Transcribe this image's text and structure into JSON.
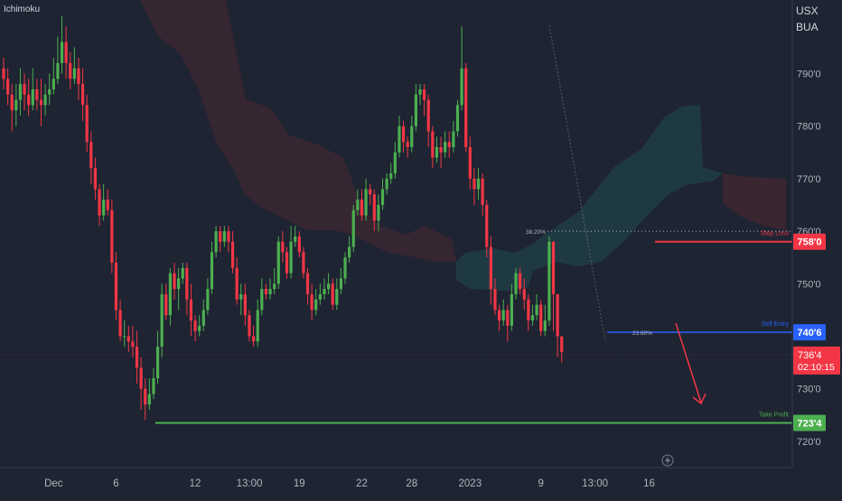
{
  "indicator_label": "Ichimoku",
  "currency": "USX",
  "unit": "BUA",
  "chart_data": {
    "type": "candlestick",
    "y_range": [
      715,
      804
    ],
    "y_ticks": [
      {
        "value": 790,
        "label": "790'0"
      },
      {
        "value": 780,
        "label": "780'0"
      },
      {
        "value": 770,
        "label": "770'0"
      },
      {
        "value": 760,
        "label": "760'0"
      },
      {
        "value": 750,
        "label": "750'0"
      },
      {
        "value": 730,
        "label": "730'0"
      },
      {
        "value": 720,
        "label": "720'0"
      }
    ],
    "x_ticks": [
      {
        "index": 12,
        "label": "Dec"
      },
      {
        "index": 27,
        "label": "6"
      },
      {
        "index": 46,
        "label": "12"
      },
      {
        "index": 59,
        "label": "13:00"
      },
      {
        "index": 71,
        "label": "19"
      },
      {
        "index": 86,
        "label": "22"
      },
      {
        "index": 98,
        "label": "28"
      },
      {
        "index": 112,
        "label": "2023"
      },
      {
        "index": 129,
        "label": "9"
      },
      {
        "index": 142,
        "label": "13:00"
      },
      {
        "index": 155,
        "label": "16"
      }
    ],
    "bar_count": 162,
    "last_price": {
      "value": 736.5,
      "label": "736'4",
      "countdown": "02:10:15"
    },
    "levels": [
      {
        "name": "Stop Loss",
        "value": 758,
        "label": "758'0",
        "color": "#f23645"
      },
      {
        "name": "Sell Entry",
        "value": 740.75,
        "label": "740'6",
        "color": "#2962ff"
      },
      {
        "name": "Take Profit",
        "value": 723.5,
        "label": "723'4",
        "color": "#4caf50"
      }
    ],
    "fib_levels": [
      {
        "label": "38.20%",
        "value": 760
      },
      {
        "label": "23.60%",
        "value": 740.75
      }
    ],
    "candles": [
      [
        791,
        789,
        793,
        787
      ],
      [
        789,
        786,
        791,
        784
      ],
      [
        786,
        783,
        788,
        779
      ],
      [
        783,
        785,
        788,
        780
      ],
      [
        785,
        788,
        791,
        782
      ],
      [
        788,
        786,
        790,
        783
      ],
      [
        786,
        784,
        789,
        782
      ],
      [
        784,
        787,
        791,
        783
      ],
      [
        787,
        785,
        789,
        783
      ],
      [
        785,
        784,
        789,
        780
      ],
      [
        784,
        786,
        788,
        782
      ],
      [
        786,
        787,
        790,
        784
      ],
      [
        787,
        789,
        793,
        786
      ],
      [
        789,
        792,
        797,
        788
      ],
      [
        792,
        796,
        801,
        790
      ],
      [
        796,
        792,
        799,
        789
      ],
      [
        792,
        789,
        794,
        787
      ],
      [
        789,
        791,
        795,
        788
      ],
      [
        791,
        788,
        793,
        785
      ],
      [
        788,
        784,
        791,
        781
      ],
      [
        784,
        777,
        786,
        775
      ],
      [
        777,
        772,
        779,
        769
      ],
      [
        772,
        768,
        774,
        766
      ],
      [
        768,
        763,
        769,
        761
      ],
      [
        763,
        766,
        769,
        762
      ],
      [
        766,
        764,
        768,
        763
      ],
      [
        764,
        754,
        766,
        752
      ],
      [
        754,
        745,
        756,
        743
      ],
      [
        745,
        740,
        747,
        739
      ],
      [
        740,
        740,
        743,
        738
      ],
      [
        740,
        739,
        742,
        737
      ],
      [
        739,
        738,
        742,
        736
      ],
      [
        738,
        734,
        741,
        731
      ],
      [
        734,
        730,
        736,
        726
      ],
      [
        730,
        727,
        732,
        724
      ],
      [
        727,
        729,
        732,
        726
      ],
      [
        729,
        732,
        734,
        728
      ],
      [
        732,
        738,
        741,
        731
      ],
      [
        738,
        748,
        750,
        736
      ],
      [
        748,
        744,
        750,
        743
      ],
      [
        744,
        752,
        753,
        742
      ],
      [
        752,
        749,
        754,
        747
      ],
      [
        749,
        751,
        753,
        745
      ],
      [
        751,
        753,
        754,
        750
      ],
      [
        753,
        747,
        754,
        744
      ],
      [
        747,
        743,
        750,
        740
      ],
      [
        743,
        741,
        744,
        739
      ],
      [
        741,
        742,
        744,
        740
      ],
      [
        742,
        745,
        747,
        741
      ],
      [
        745,
        749,
        751,
        744
      ],
      [
        749,
        756,
        758,
        748
      ],
      [
        756,
        760,
        761,
        755
      ],
      [
        760,
        758,
        761,
        756
      ],
      [
        758,
        760,
        761,
        757
      ],
      [
        760,
        758,
        761,
        756
      ],
      [
        758,
        753,
        760,
        752
      ],
      [
        753,
        747,
        755,
        746
      ],
      [
        747,
        748,
        750,
        744
      ],
      [
        748,
        744,
        750,
        742
      ],
      [
        744,
        740,
        745,
        739
      ],
      [
        740,
        739,
        742,
        738
      ],
      [
        739,
        745,
        747,
        738
      ],
      [
        745,
        749,
        751,
        744
      ],
      [
        749,
        748,
        750,
        747
      ],
      [
        748,
        749,
        751,
        747
      ],
      [
        749,
        750,
        753,
        748
      ],
      [
        750,
        758,
        759,
        749
      ],
      [
        758,
        756,
        760,
        754
      ],
      [
        756,
        752,
        757,
        751
      ],
      [
        752,
        758,
        761,
        751
      ],
      [
        758,
        759,
        761,
        757
      ],
      [
        759,
        756,
        760,
        755
      ],
      [
        756,
        752,
        757,
        751
      ],
      [
        752,
        748,
        753,
        746
      ],
      [
        748,
        745,
        750,
        743
      ],
      [
        745,
        747,
        749,
        744
      ],
      [
        747,
        748,
        750,
        746
      ],
      [
        748,
        749,
        751,
        747
      ],
      [
        749,
        750,
        752,
        748
      ],
      [
        750,
        746,
        751,
        745
      ],
      [
        746,
        749,
        751,
        745
      ],
      [
        749,
        751,
        753,
        748
      ],
      [
        751,
        755,
        756,
        750
      ],
      [
        755,
        757,
        759,
        754
      ],
      [
        757,
        764,
        765,
        756
      ],
      [
        764,
        766,
        768,
        763
      ],
      [
        766,
        763,
        768,
        762
      ],
      [
        763,
        768,
        770,
        762
      ],
      [
        768,
        767,
        769,
        765
      ],
      [
        767,
        762,
        768,
        760
      ],
      [
        762,
        765,
        767,
        760
      ],
      [
        765,
        768,
        770,
        764
      ],
      [
        768,
        770,
        771,
        767
      ],
      [
        770,
        771,
        773,
        769
      ],
      [
        771,
        775,
        777,
        770
      ],
      [
        775,
        780,
        782,
        774
      ],
      [
        780,
        777,
        781,
        775
      ],
      [
        777,
        776,
        778,
        774
      ],
      [
        776,
        780,
        782,
        775
      ],
      [
        780,
        786,
        788,
        779
      ],
      [
        786,
        787,
        788,
        784
      ],
      [
        787,
        785,
        788,
        782
      ],
      [
        785,
        779,
        786,
        776
      ],
      [
        779,
        774,
        780,
        772
      ],
      [
        774,
        776,
        778,
        773
      ],
      [
        776,
        775,
        778,
        772
      ],
      [
        775,
        777,
        779,
        774
      ],
      [
        777,
        776,
        779,
        774
      ],
      [
        776,
        779,
        781,
        775
      ],
      [
        779,
        784,
        785,
        778
      ],
      [
        784,
        791,
        799,
        783
      ],
      [
        791,
        776,
        792,
        775
      ],
      [
        776,
        770,
        778,
        768
      ],
      [
        770,
        768,
        772,
        765
      ],
      [
        768,
        770,
        772,
        766
      ],
      [
        770,
        765,
        771,
        763
      ],
      [
        765,
        757,
        766,
        755
      ],
      [
        757,
        749,
        759,
        746
      ],
      [
        749,
        745,
        751,
        744
      ],
      [
        745,
        743,
        746,
        741
      ],
      [
        743,
        745,
        747,
        742
      ],
      [
        745,
        742,
        746,
        739
      ],
      [
        742,
        748,
        750,
        741
      ],
      [
        748,
        752,
        753,
        747
      ],
      [
        752,
        749,
        753,
        748
      ],
      [
        749,
        747,
        751,
        745
      ],
      [
        747,
        743,
        748,
        741
      ],
      [
        743,
        744,
        746,
        742
      ],
      [
        744,
        746,
        748,
        743
      ],
      [
        746,
        741,
        747,
        740
      ],
      [
        741,
        743,
        746,
        740
      ],
      [
        743,
        758,
        759,
        742
      ],
      [
        758,
        748,
        758,
        741
      ],
      [
        748,
        740,
        748,
        736
      ],
      [
        740,
        737,
        740,
        735
      ]
    ]
  }
}
